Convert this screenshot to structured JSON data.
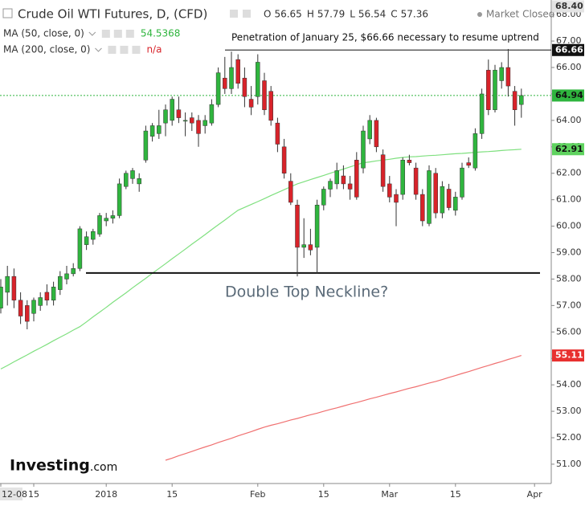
{
  "chart_data": {
    "type": "candlestick",
    "title": "Crude Oil WTI Futures, D, (CFD)",
    "ohlc_header": [
      {
        "label": "O",
        "value": 56.65
      },
      {
        "label": "H",
        "value": 57.79
      },
      {
        "label": "L",
        "value": 56.54
      },
      {
        "label": "C",
        "value": 57.36
      }
    ],
    "status": "Market Closed",
    "up_color": "#2fb53e",
    "down_color": "#d8232a",
    "categories": [
      "12-08",
      null,
      null,
      null,
      null,
      "15",
      null,
      null,
      null,
      null,
      null,
      null,
      null,
      null,
      null,
      null,
      "2018",
      null,
      null,
      null,
      null,
      null,
      null,
      null,
      null,
      null,
      "15",
      null,
      null,
      null,
      null,
      null,
      null,
      null,
      null,
      null,
      null,
      null,
      null,
      "Feb",
      null,
      null,
      null,
      null,
      null,
      null,
      null,
      null,
      null,
      "15",
      null,
      null,
      null,
      null,
      null,
      null,
      null,
      null,
      null,
      "Mar",
      null,
      null,
      null,
      null,
      null,
      null,
      null,
      null,
      null,
      "15",
      null,
      null,
      null,
      null,
      null,
      null,
      null,
      null,
      null,
      null,
      null,
      "Apr"
    ],
    "open": [
      56.9,
      57.5,
      58.1,
      57.2,
      57.0,
      56.7,
      57.0,
      57.5,
      57.2,
      57.6,
      58.0,
      58.2,
      58.4,
      59.3,
      59.5,
      59.7,
      60.2,
      60.3,
      60.4,
      61.5,
      61.8,
      61.6,
      62.5,
      63.4,
      63.5,
      63.9,
      64.0,
      64.4,
      64.0,
      64.1,
      64.0,
      63.8,
      63.9,
      64.6,
      65.6,
      65.2,
      66.3,
      65.6,
      64.8,
      64.9,
      65.5,
      65.1,
      63.9,
      63.0,
      61.7,
      60.8,
      59.2,
      59.3,
      59.2,
      60.8,
      61.4,
      61.6,
      61.9,
      61.6,
      62.5,
      62.2,
      63.3,
      64.0,
      62.7,
      61.6,
      61.2,
      61.2,
      62.5,
      62.2,
      61.2,
      60.1,
      62.0,
      60.5,
      61.4,
      60.6,
      61.1,
      62.4,
      62.2,
      63.5,
      65.9,
      64.4,
      65.5,
      66.0,
      65.1,
      64.6,
      null,
      null
    ],
    "high": [
      58.0,
      58.5,
      58.4,
      57.5,
      57.2,
      57.3,
      57.5,
      57.8,
      57.9,
      58.3,
      58.5,
      58.6,
      60.0,
      59.8,
      59.9,
      60.5,
      60.5,
      60.6,
      61.8,
      62.1,
      62.2,
      62.0,
      63.8,
      63.9,
      64.4,
      64.6,
      64.9,
      64.9,
      64.3,
      64.3,
      64.2,
      64.2,
      64.8,
      66.0,
      66.4,
      66.6,
      66.5,
      66.0,
      65.3,
      66.5,
      65.8,
      65.3,
      64.1,
      63.3,
      62.0,
      61.0,
      60.3,
      59.9,
      61.0,
      61.5,
      61.8,
      62.4,
      62.3,
      61.9,
      62.8,
      63.8,
      64.2,
      64.1,
      62.9,
      61.9,
      61.4,
      62.6,
      62.7,
      62.4,
      61.4,
      62.3,
      62.2,
      61.7,
      61.6,
      61.3,
      62.4,
      62.6,
      63.7,
      65.2,
      66.3,
      66.1,
      66.2,
      66.7,
      65.3,
      65.2,
      null,
      null
    ],
    "low": [
      56.7,
      57.0,
      56.9,
      56.3,
      56.1,
      56.4,
      56.8,
      57.0,
      57.0,
      57.4,
      57.8,
      58.1,
      58.3,
      59.1,
      59.3,
      59.6,
      60.0,
      60.1,
      60.3,
      61.4,
      61.6,
      61.3,
      62.4,
      63.2,
      63.3,
      63.4,
      63.8,
      63.9,
      63.4,
      63.6,
      63.0,
      63.5,
      63.8,
      64.5,
      65.0,
      65.0,
      65.2,
      64.5,
      64.2,
      64.6,
      64.2,
      63.8,
      62.8,
      61.8,
      60.8,
      58.1,
      58.8,
      58.9,
      58.2,
      60.6,
      61.1,
      61.4,
      61.4,
      61.0,
      61.0,
      62.0,
      63.1,
      62.8,
      61.3,
      60.9,
      60.0,
      61.0,
      62.3,
      61.0,
      60.0,
      60.0,
      60.3,
      60.3,
      60.6,
      60.4,
      61.0,
      62.2,
      62.1,
      63.3,
      64.2,
      64.3,
      65.2,
      64.9,
      63.8,
      64.1,
      null,
      null
    ],
    "close": [
      57.7,
      58.1,
      57.2,
      56.6,
      56.4,
      57.2,
      57.3,
      57.2,
      57.7,
      58.1,
      58.2,
      58.4,
      59.9,
      59.6,
      59.8,
      60.4,
      60.3,
      60.4,
      61.6,
      62.0,
      62.1,
      61.8,
      63.6,
      63.8,
      63.8,
      64.4,
      64.8,
      64.1,
      64.0,
      63.9,
      63.5,
      64.0,
      64.6,
      65.8,
      65.2,
      66.0,
      65.4,
      64.9,
      64.5,
      66.2,
      64.4,
      64.0,
      63.1,
      62.0,
      60.9,
      59.2,
      59.3,
      59.1,
      60.8,
      61.4,
      61.7,
      62.1,
      61.6,
      61.4,
      61.1,
      63.6,
      64.0,
      63.0,
      61.5,
      61.1,
      60.9,
      62.5,
      62.4,
      61.2,
      60.2,
      62.1,
      60.5,
      61.5,
      60.7,
      61.1,
      62.2,
      62.3,
      63.5,
      65.0,
      64.4,
      65.9,
      66.0,
      65.3,
      64.4,
      64.94,
      null,
      null
    ],
    "ma_series": [
      {
        "name": "MA (50, close, 0)",
        "color": "#7fe07f",
        "last_label": 54.5368,
        "label_color": "#2fb53e",
        "values": [
          54.6,
          54.73,
          54.87,
          55.0,
          55.13,
          55.27,
          55.4,
          55.53,
          55.67,
          55.8,
          55.93,
          56.07,
          56.2,
          56.38,
          56.57,
          56.75,
          56.93,
          57.12,
          57.3,
          57.48,
          57.67,
          57.85,
          58.03,
          58.22,
          58.4,
          58.58,
          58.77,
          58.95,
          59.13,
          59.32,
          59.5,
          59.68,
          59.87,
          60.05,
          60.23,
          60.42,
          60.6,
          60.71,
          60.82,
          60.93,
          61.04,
          61.16,
          61.27,
          61.38,
          61.49,
          61.6,
          61.68,
          61.76,
          61.84,
          61.92,
          62.0,
          62.08,
          62.16,
          62.24,
          62.32,
          62.4,
          62.43,
          62.47,
          62.5,
          62.53,
          62.57,
          62.6,
          62.62,
          62.63,
          62.65,
          62.67,
          62.68,
          62.7,
          62.72,
          62.74,
          62.75,
          62.77,
          62.79,
          62.81,
          62.82,
          62.84,
          62.86,
          62.88,
          62.89,
          62.91,
          null,
          null
        ]
      },
      {
        "name": "MA (200, close, 0)",
        "color": "#f07070",
        "last_label": "n/a",
        "label_color": "#d8232a",
        "values": [
          null,
          null,
          null,
          null,
          null,
          null,
          null,
          null,
          null,
          null,
          null,
          null,
          null,
          null,
          null,
          null,
          null,
          null,
          null,
          null,
          null,
          null,
          null,
          null,
          null,
          51.15,
          51.23,
          51.32,
          51.4,
          51.48,
          51.57,
          51.65,
          51.73,
          51.82,
          51.9,
          51.98,
          52.07,
          52.15,
          52.23,
          52.32,
          52.4,
          52.47,
          52.53,
          52.6,
          52.67,
          52.73,
          52.8,
          52.87,
          52.93,
          53.0,
          53.07,
          53.13,
          53.2,
          53.27,
          53.33,
          53.4,
          53.47,
          53.53,
          53.6,
          53.67,
          53.73,
          53.8,
          53.87,
          53.93,
          54.0,
          54.07,
          54.13,
          54.2,
          54.28,
          54.35,
          54.43,
          54.5,
          54.58,
          54.66,
          54.73,
          54.81,
          54.88,
          54.96,
          55.03,
          55.11,
          null,
          null
        ]
      }
    ],
    "ylim": [
      50.33,
      68.4
    ],
    "yticks": [
      {
        "value": 51,
        "label": "51.00"
      },
      {
        "value": 52,
        "label": "52.00"
      },
      {
        "value": 53,
        "label": "53.00"
      },
      {
        "value": 54,
        "label": "54.00"
      },
      {
        "value": 55,
        "label": "55.00"
      },
      {
        "value": 56,
        "label": "56.00"
      },
      {
        "value": 57,
        "label": "57.00"
      },
      {
        "value": 58,
        "label": "58.00"
      },
      {
        "value": 59,
        "label": "59.00"
      },
      {
        "value": 60,
        "label": "60.00"
      },
      {
        "value": 61,
        "label": "61.00"
      },
      {
        "value": 62,
        "label": "62.00"
      },
      {
        "value": 63,
        "label": "63.00"
      },
      {
        "value": 64,
        "label": "64.00"
      },
      {
        "value": 65,
        "label": "65.00"
      },
      {
        "value": 66,
        "label": "66.00"
      },
      {
        "value": 67,
        "label": "67.00"
      },
      {
        "value": 68,
        "label": "68.00"
      }
    ],
    "price_labels": [
      {
        "value": 68.4,
        "label": "68.40",
        "color": "#e4e4e4",
        "text_color": "#333"
      },
      {
        "value": 66.66,
        "label": "66.66",
        "color": "#111111",
        "text_color": "#ffffff"
      },
      {
        "value": 64.94,
        "label": "64.94",
        "color": "#2fb53e",
        "text_color": "#111111"
      },
      {
        "value": 62.91,
        "label": "62.91",
        "color": "#5fd35f",
        "text_color": "#111111"
      },
      {
        "value": 55.11,
        "label": "55.11",
        "color": "#e8302f",
        "text_color": "#ffffff"
      }
    ],
    "resistance": {
      "value": 66.66,
      "text": "Penetration of January 25, $66.66 necessary to resume uptrend"
    },
    "neckline": {
      "value": 58.23,
      "text": "Double Top Neckline?"
    },
    "last_price": 64.94,
    "logo": {
      "main": "Investing",
      "suffix": ".com"
    }
  }
}
